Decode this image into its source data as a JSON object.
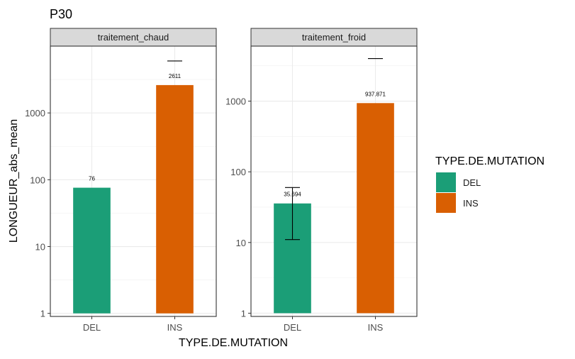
{
  "chart_data": {
    "type": "bar",
    "title": "P30",
    "xlabel": "TYPE.DE.MUTATION",
    "ylabel": "LONGUEUR_abs_mean",
    "y_scale": "log10",
    "ylim": [
      0.9,
      10000
    ],
    "y_ticks": [
      1,
      10,
      100,
      1000
    ],
    "y_tick_labels": [
      "1",
      "10",
      "100",
      "1000"
    ],
    "categories": [
      "DEL",
      "INS"
    ],
    "grid": true,
    "legend": {
      "title": "TYPE.DE.MUTATION",
      "position": "right",
      "entries": [
        {
          "name": "DEL",
          "color": "#1b9e77"
        },
        {
          "name": "INS",
          "color": "#d95f02"
        }
      ]
    },
    "panels": [
      {
        "name": "traitement_chaud",
        "ylim": [
          0.9,
          10000
        ],
        "values": [
          76,
          2611
        ],
        "value_labels": [
          "76",
          "2611"
        ],
        "errors": [
          null,
          {
            "lower": 6000,
            "upper": 6000
          }
        ]
      },
      {
        "name": "traitement_froid",
        "ylim": [
          0.9,
          6000
        ],
        "values": [
          35.694,
          937.871
        ],
        "value_labels": [
          "35.694",
          "937.871"
        ],
        "errors": [
          {
            "lower": 11,
            "upper": 60
          },
          {
            "lower": 4000,
            "upper": 4000
          }
        ]
      }
    ]
  }
}
